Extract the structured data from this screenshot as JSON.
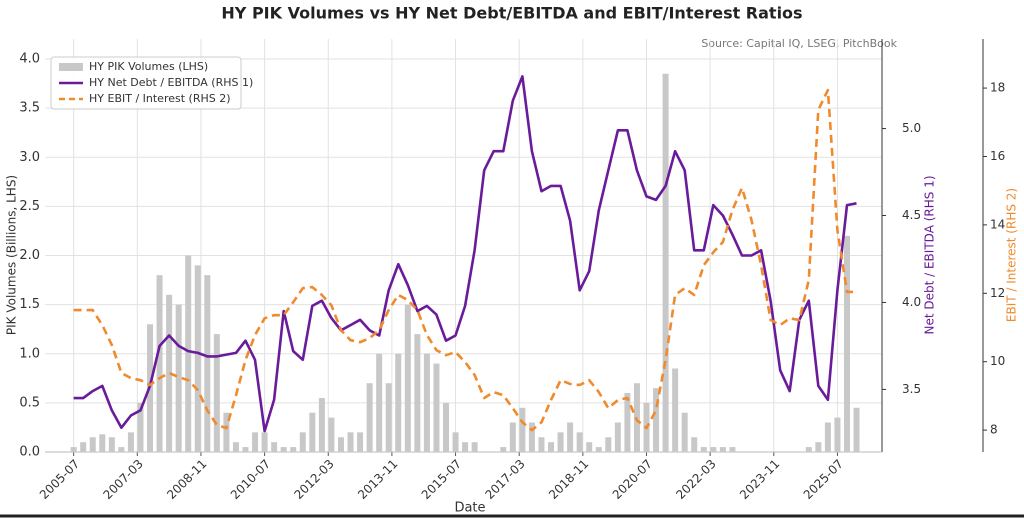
{
  "chart_data": {
    "type": "combo",
    "title": "HY PIK Volumes vs HY Net Debt/EBITDA and EBIT/Interest Ratios",
    "subtitle": "Source: Capital IQ, LSEG, PitchBook",
    "x_label": "Date",
    "y_label": "PIK Volumes (Billions, LHS)",
    "y2_label": "Net Debt / EBITDA (RHS 1)",
    "y3_label": "EBIT / Interest (RHS 2)",
    "legend": "upper left",
    "grid": true,
    "x": [
      "2005-07",
      "2005-10",
      "2006-01",
      "2006-04",
      "2006-07",
      "2006-10",
      "2007-01",
      "2007-04",
      "2007-07",
      "2007-10",
      "2008-01",
      "2008-04",
      "2008-07",
      "2008-10",
      "2009-01",
      "2009-04",
      "2009-07",
      "2009-10",
      "2010-01",
      "2010-04",
      "2010-07",
      "2010-10",
      "2011-01",
      "2011-04",
      "2011-07",
      "2011-10",
      "2012-01",
      "2012-04",
      "2012-07",
      "2012-10",
      "2013-01",
      "2013-04",
      "2013-07",
      "2013-10",
      "2014-01",
      "2014-04",
      "2014-07",
      "2014-10",
      "2015-01",
      "2015-04",
      "2015-07",
      "2015-10",
      "2016-01",
      "2016-04",
      "2016-07",
      "2016-10",
      "2017-01",
      "2017-04",
      "2017-07",
      "2017-10",
      "2018-01",
      "2018-04",
      "2018-07",
      "2018-10",
      "2019-01",
      "2019-04",
      "2019-07",
      "2019-10",
      "2020-01",
      "2020-04",
      "2020-07",
      "2020-10",
      "2021-01",
      "2021-04",
      "2021-07",
      "2021-10",
      "2022-01",
      "2022-04",
      "2022-07",
      "2022-10",
      "2023-01",
      "2023-04",
      "2023-07",
      "2023-10",
      "2024-01",
      "2024-04",
      "2024-07",
      "2024-10",
      "2025-01",
      "2025-04",
      "2025-07",
      "2025-10",
      "2026-01"
    ],
    "xlim": [
      "2004-10",
      "2026-09"
    ],
    "xticks": [
      "2005-07",
      "2007-03",
      "2008-11",
      "2010-07",
      "2012-03",
      "2013-11",
      "2015-07",
      "2017-03",
      "2018-11",
      "2020-07",
      "2022-03",
      "2023-11",
      "2025-07"
    ],
    "ylim": [
      0,
      4.0
    ],
    "yticks": [
      {
        "value": 0,
        "label": "0.0"
      },
      0.5,
      {
        "value": 1,
        "label": "1.0"
      },
      1.5,
      {
        "value": 2,
        "label": "2.0"
      },
      2.5,
      {
        "value": 3,
        "label": "3.0"
      },
      3.5,
      {
        "value": 4,
        "label": "4.0"
      }
    ],
    "y2lim": [
      3.14,
      5.4
    ],
    "y2ticks": [
      3.5,
      {
        "value": 4,
        "label": "4.0"
      },
      4.5,
      {
        "value": 5,
        "label": "5.0"
      }
    ],
    "y3lim": [
      7.36,
      18.85
    ],
    "y3ticks": [
      8,
      10,
      12,
      14,
      16,
      18
    ],
    "series": [
      {
        "name": "HY PIK Volumes (LHS)",
        "type": "bar",
        "color": "#c8c8c8",
        "values": [
          0.05,
          0.1,
          0.15,
          0.18,
          0.15,
          0.05,
          0.2,
          0.5,
          1.3,
          1.8,
          1.6,
          1.5,
          2.0,
          1.9,
          1.8,
          1.2,
          0.4,
          0.1,
          0.05,
          0.2,
          0.2,
          0.1,
          0.05,
          0.05,
          0.2,
          0.4,
          0.55,
          0.35,
          0.15,
          0.2,
          0.2,
          0.7,
          1.0,
          0.7,
          1.0,
          1.5,
          1.2,
          1.0,
          0.9,
          0.5,
          0.2,
          0.1,
          0.1,
          0,
          0,
          0.05,
          0.3,
          0.45,
          0.3,
          0.15,
          0.1,
          0.2,
          0.3,
          0.2,
          0.1,
          0.05,
          0.15,
          0.3,
          0.6,
          0.7,
          0.5,
          0.65,
          3.85,
          0.85,
          0.4,
          0.15,
          0.05,
          0.05,
          0.05,
          0.05,
          0,
          0,
          0,
          0,
          0,
          0,
          0,
          0.05,
          0.1,
          0.3,
          0.35,
          2.2,
          0.45
        ]
      },
      {
        "name": "HY Net Debt / EBITDA (RHS 1)",
        "type": "line",
        "axis": "y2",
        "color": "#6a1b9a",
        "values": [
          3.45,
          3.45,
          3.49,
          3.52,
          3.38,
          3.28,
          3.35,
          3.38,
          3.52,
          3.75,
          3.81,
          3.75,
          3.72,
          3.71,
          3.69,
          3.69,
          3.7,
          3.71,
          3.78,
          3.67,
          3.26,
          3.44,
          3.95,
          3.72,
          3.67,
          3.98,
          4.01,
          3.91,
          3.84,
          3.87,
          3.9,
          3.84,
          3.81,
          4.07,
          4.22,
          4.1,
          3.95,
          3.98,
          3.93,
          3.78,
          3.81,
          3.98,
          4.3,
          4.76,
          4.87,
          4.87,
          5.16,
          5.3,
          4.87,
          4.64,
          4.67,
          4.67,
          4.47,
          4.07,
          4.18,
          4.53,
          4.76,
          4.99,
          4.99,
          4.76,
          4.61,
          4.59,
          4.67,
          4.87,
          4.76,
          4.3,
          4.3,
          4.56,
          4.5,
          4.39,
          4.27,
          4.27,
          4.3,
          4.01,
          3.61,
          3.49,
          3.9,
          4.01,
          3.52,
          3.44,
          4.07,
          4.56,
          4.57
        ]
      },
      {
        "name": "HY EBIT / Interest (RHS 2)",
        "type": "line",
        "axis": "y3",
        "color": "#f08a2c",
        "dashed": true,
        "values": [
          11.51,
          11.51,
          11.51,
          11.07,
          10.49,
          9.67,
          9.52,
          9.46,
          9.32,
          9.52,
          9.67,
          9.55,
          9.46,
          9.17,
          8.58,
          8.15,
          8.06,
          9.02,
          10.05,
          10.78,
          11.27,
          11.36,
          11.36,
          11.74,
          12.15,
          12.18,
          11.95,
          11.65,
          10.92,
          10.63,
          10.57,
          10.69,
          10.92,
          11.51,
          11.95,
          11.8,
          11.51,
          10.78,
          10.34,
          10.19,
          10.28,
          9.99,
          9.61,
          8.94,
          9.11,
          9.02,
          8.64,
          8.23,
          8.0,
          8.23,
          8.88,
          9.46,
          9.35,
          9.32,
          9.46,
          9.11,
          8.64,
          8.88,
          8.94,
          8.29,
          8.06,
          8.58,
          10.05,
          11.95,
          12.15,
          11.95,
          12.82,
          13.2,
          13.5,
          14.43,
          15.08,
          14.14,
          12.82,
          11.22,
          11.07,
          11.27,
          11.22,
          12.39,
          17.36,
          17.94,
          13.85,
          12.04,
          12.04
        ]
      }
    ]
  }
}
